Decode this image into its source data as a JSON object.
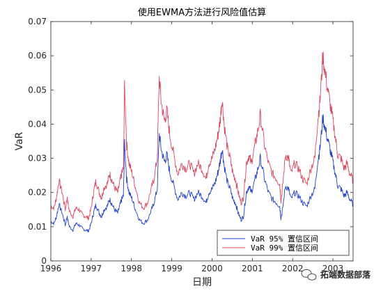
{
  "chart_data": {
    "type": "line",
    "title": "使用EWMA方法进行风险值估算",
    "xlabel": "日期",
    "ylabel": "VaR",
    "xlim": [
      1996,
      2003.5
    ],
    "ylim": [
      0,
      0.07
    ],
    "grid": false,
    "legend_position": "bottom-right",
    "x_ticks": [
      "1996",
      "1997",
      "1998",
      "1999",
      "2000",
      "2001",
      "2002",
      "2003"
    ],
    "y_ticks": [
      "0",
      "0.01",
      "0.02",
      "0.03",
      "0.04",
      "0.05",
      "0.06",
      "0.07"
    ],
    "x": [
      1996.0,
      1996.08,
      1996.14,
      1996.2,
      1996.28,
      1996.36,
      1996.4,
      1996.46,
      1996.55,
      1996.62,
      1996.7,
      1996.78,
      1996.86,
      1996.94,
      1997.0,
      1997.06,
      1997.12,
      1997.2,
      1997.26,
      1997.32,
      1997.4,
      1997.46,
      1997.5,
      1997.58,
      1997.66,
      1997.72,
      1997.76,
      1997.8,
      1997.83,
      1997.88,
      1997.94,
      1998.02,
      1998.1,
      1998.2,
      1998.3,
      1998.4,
      1998.5,
      1998.56,
      1998.64,
      1998.69,
      1998.75,
      1998.82,
      1998.88,
      1998.95,
      1999.05,
      1999.15,
      1999.25,
      1999.35,
      1999.45,
      1999.55,
      1999.65,
      1999.75,
      1999.85,
      1999.92,
      2000.0,
      2000.08,
      2000.15,
      2000.2,
      2000.25,
      2000.3,
      2000.38,
      2000.45,
      2000.52,
      2000.58,
      2000.65,
      2000.72,
      2000.78,
      2000.85,
      2000.92,
      2000.97,
      2001.05,
      2001.12,
      2001.2,
      2001.3,
      2001.4,
      2001.5,
      2001.6,
      2001.68,
      2001.71,
      2001.75,
      2001.82,
      2001.9,
      2001.96,
      2002.05,
      2002.15,
      2002.25,
      2002.35,
      2002.45,
      2002.55,
      2002.62,
      2002.68,
      2002.75,
      2002.82,
      2002.9,
      2002.98,
      2003.05,
      2003.12,
      2003.2,
      2003.28,
      2003.35,
      2003.42,
      2003.5
    ],
    "series": [
      {
        "name": "VaR 95% 置信区间",
        "color": "#1f3fd9",
        "values": [
          0.0115,
          0.011,
          0.013,
          0.0165,
          0.014,
          0.0105,
          0.013,
          0.01,
          0.009,
          0.011,
          0.0105,
          0.0095,
          0.009,
          0.0088,
          0.011,
          0.014,
          0.0165,
          0.014,
          0.013,
          0.015,
          0.016,
          0.018,
          0.017,
          0.015,
          0.014,
          0.0165,
          0.018,
          0.019,
          0.035,
          0.024,
          0.02,
          0.018,
          0.015,
          0.012,
          0.011,
          0.012,
          0.015,
          0.017,
          0.021,
          0.037,
          0.032,
          0.029,
          0.031,
          0.026,
          0.022,
          0.018,
          0.02,
          0.019,
          0.02,
          0.018,
          0.02,
          0.019,
          0.017,
          0.02,
          0.021,
          0.023,
          0.026,
          0.029,
          0.033,
          0.028,
          0.023,
          0.021,
          0.018,
          0.017,
          0.014,
          0.012,
          0.013,
          0.02,
          0.022,
          0.02,
          0.023,
          0.026,
          0.03,
          0.024,
          0.02,
          0.018,
          0.017,
          0.016,
          0.0125,
          0.015,
          0.022,
          0.021,
          0.018,
          0.02,
          0.019,
          0.017,
          0.016,
          0.019,
          0.021,
          0.029,
          0.033,
          0.042,
          0.038,
          0.034,
          0.03,
          0.026,
          0.022,
          0.021,
          0.019,
          0.02,
          0.018,
          0.0165
        ]
      },
      {
        "name": "VaR 99% 置信区间",
        "color": "#e0435c",
        "values": [
          0.016,
          0.0155,
          0.0185,
          0.0235,
          0.02,
          0.015,
          0.0185,
          0.0145,
          0.013,
          0.0155,
          0.015,
          0.0135,
          0.013,
          0.0125,
          0.0155,
          0.02,
          0.0235,
          0.02,
          0.0185,
          0.0215,
          0.0225,
          0.0255,
          0.024,
          0.0215,
          0.02,
          0.0235,
          0.0255,
          0.027,
          0.052,
          0.034,
          0.0285,
          0.0255,
          0.0215,
          0.017,
          0.0155,
          0.017,
          0.0215,
          0.024,
          0.03,
          0.0535,
          0.0455,
          0.041,
          0.044,
          0.037,
          0.031,
          0.0255,
          0.0285,
          0.027,
          0.0285,
          0.0255,
          0.0285,
          0.027,
          0.024,
          0.0285,
          0.03,
          0.033,
          0.037,
          0.041,
          0.0475,
          0.04,
          0.033,
          0.03,
          0.0255,
          0.024,
          0.02,
          0.017,
          0.0185,
          0.0285,
          0.031,
          0.0285,
          0.033,
          0.037,
          0.0425,
          0.034,
          0.0285,
          0.0255,
          0.024,
          0.0225,
          0.0175,
          0.0215,
          0.031,
          0.03,
          0.0255,
          0.0285,
          0.027,
          0.024,
          0.0225,
          0.027,
          0.03,
          0.041,
          0.047,
          0.06,
          0.054,
          0.048,
          0.0425,
          0.037,
          0.031,
          0.03,
          0.027,
          0.0285,
          0.0255,
          0.0235
        ]
      }
    ]
  },
  "watermark": {
    "text": "拓端数据部落",
    "icon": "wechat-icon"
  }
}
